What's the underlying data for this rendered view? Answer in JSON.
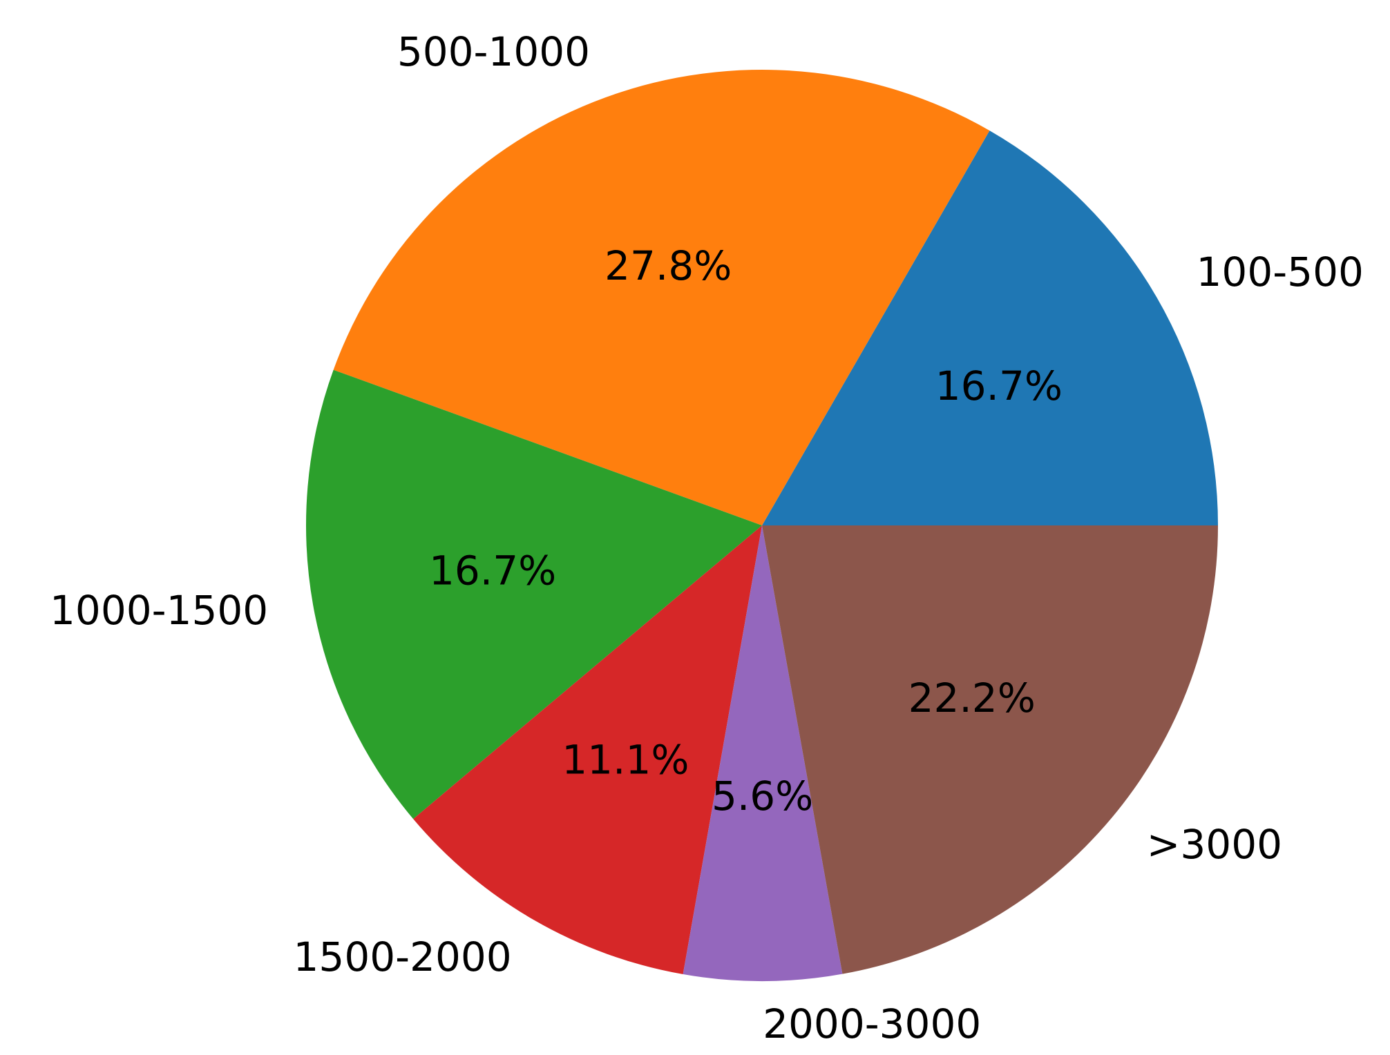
{
  "chart_data": {
    "type": "pie",
    "categories": [
      "100-500",
      "500-1000",
      "1000-1500",
      "1500-2000",
      "2000-3000",
      ">3000"
    ],
    "values": [
      16.7,
      27.8,
      16.7,
      11.1,
      5.6,
      22.2
    ],
    "value_labels": [
      "16.7%",
      "27.8%",
      "16.7%",
      "11.1%",
      "5.6%",
      "22.2%"
    ],
    "colors": [
      "#1f77b4",
      "#ff7f0e",
      "#2ca02c",
      "#d62728",
      "#9467bd",
      "#8c564b"
    ]
  }
}
